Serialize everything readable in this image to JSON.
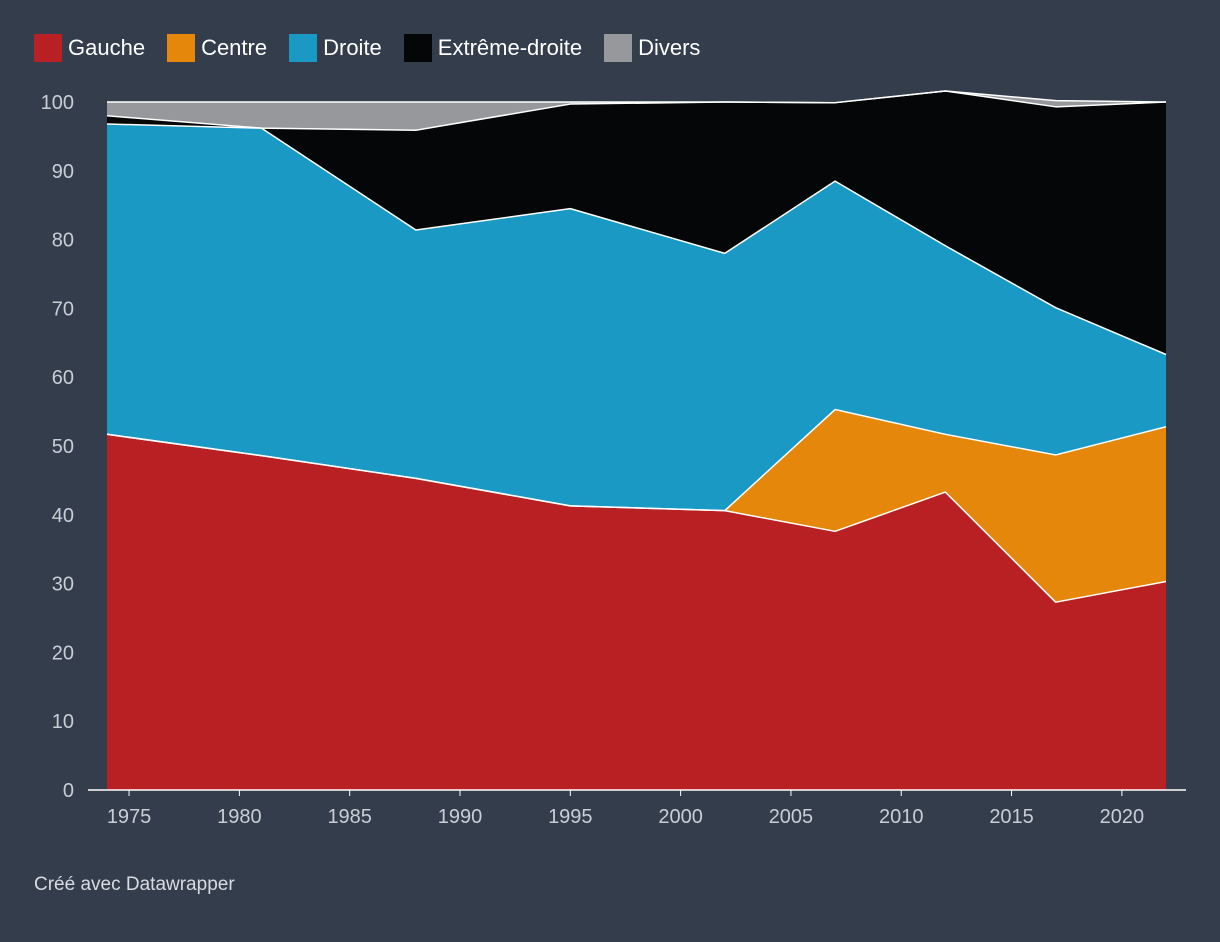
{
  "chart_data": {
    "type": "area",
    "stacked": true,
    "title": "",
    "xlabel": "",
    "ylabel": "",
    "xlim": [
      1974,
      2022
    ],
    "ylim": [
      0,
      100
    ],
    "grid": false,
    "legend_position": "top-left",
    "x": [
      1974,
      1981,
      1988,
      1995,
      2002,
      2007,
      2012,
      2017,
      2022
    ],
    "series": [
      {
        "name": "Gauche",
        "color": "#b82024",
        "values": [
          51.7,
          48.6,
          45.3,
          41.3,
          40.6,
          37.6,
          43.3,
          27.3,
          30.3
        ]
      },
      {
        "name": "Centre",
        "color": "#e5870a",
        "values": [
          0,
          0,
          0,
          0,
          0,
          17.7,
          8.4,
          21.4,
          22.5
        ]
      },
      {
        "name": "Droite",
        "color": "#1a99c4",
        "values": [
          45.1,
          47.6,
          36.1,
          43.2,
          37.4,
          33.2,
          27.4,
          21.4,
          10.5
        ]
      },
      {
        "name": "Extrême-droite",
        "color": "#050608",
        "values": [
          1.2,
          0,
          14.5,
          15.2,
          22.0,
          11.4,
          22.5,
          29.2,
          36.7
        ]
      },
      {
        "name": "Divers",
        "color": "#96989b",
        "values": [
          2.0,
          3.8,
          4.1,
          0.3,
          0,
          0,
          0,
          0.9,
          0
        ]
      }
    ],
    "x_ticks": [
      "1975",
      "1980",
      "1985",
      "1990",
      "1995",
      "2000",
      "2005",
      "2010",
      "2015",
      "2020"
    ],
    "y_ticks": [
      "0",
      "10",
      "20",
      "30",
      "40",
      "50",
      "60",
      "70",
      "80",
      "90",
      "100"
    ]
  },
  "footer": {
    "credit": "Créé avec Datawrapper"
  }
}
